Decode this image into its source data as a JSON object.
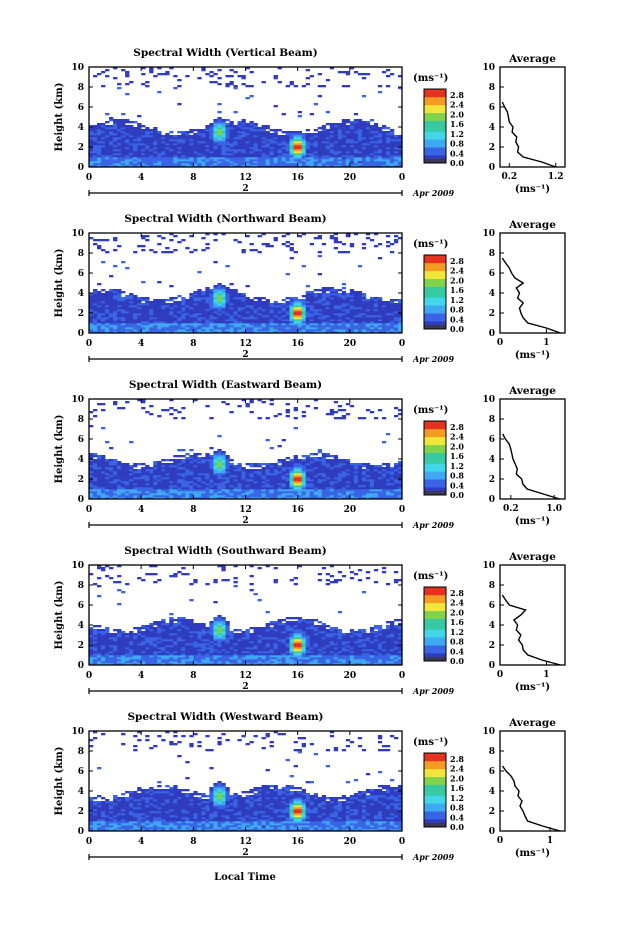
{
  "figure": {
    "colors": {
      "white": "#ffffff",
      "navy": "#2f3cbd",
      "blue": "#3a64e6",
      "sky": "#3fa8f2",
      "cyan": "#41d6e8",
      "teal": "#37c9a2",
      "green": "#7fd24a",
      "yellow": "#f1e63a",
      "orange": "#f29c22",
      "red": "#e5321e",
      "colorbar_bottom": "#3a3a55"
    },
    "x_axis_label": "Local Time",
    "date_label": "Apr 2009",
    "date_marker": "2",
    "colorbar_unit": "(ms⁻¹)",
    "average_title": "Average",
    "average_xlabel": "(ms⁻¹)",
    "y_axis_label": "Height (km)"
  },
  "chart_data": [
    {
      "type": "heatmap",
      "title": "Spectral Width (Vertical Beam)",
      "xlabel": "Local Time",
      "ylabel": "Height (km)",
      "xlim": [
        0,
        24
      ],
      "ylim": [
        0,
        10
      ],
      "x_ticks": [
        "0",
        "4",
        "8",
        "12",
        "16",
        "20",
        "0"
      ],
      "y_ticks": [
        "0",
        "2",
        "4",
        "6",
        "8",
        "10"
      ],
      "colorbar": {
        "unit": "(ms⁻¹)",
        "ticks": [
          "0.0",
          "0.4",
          "0.8",
          "1.2",
          "1.6",
          "2.0",
          "2.4",
          "2.8"
        ],
        "range": [
          0,
          2.8
        ]
      },
      "layer_top_km": 4.4,
      "features": [
        {
          "time": 10,
          "height": 3.5,
          "value": 1.8
        },
        {
          "time": 16,
          "height": 2.0,
          "value": 2.8
        }
      ],
      "average": {
        "title": "Average",
        "xlabel": "(ms⁻¹)",
        "x_ticks": [
          "0.2",
          "1.2"
        ],
        "xlim": [
          0,
          1.4
        ],
        "height": [
          0,
          0.5,
          1,
          1.5,
          2,
          2.5,
          3,
          3.5,
          4,
          4.5,
          5,
          5.5,
          6,
          6.5
        ],
        "width": [
          1.2,
          0.9,
          0.5,
          0.38,
          0.4,
          0.34,
          0.36,
          0.26,
          0.28,
          0.2,
          0.18,
          0.16,
          0.1,
          0.05
        ]
      }
    },
    {
      "type": "heatmap",
      "title": "Spectral Width (Northward Beam)",
      "xlabel": "Local Time",
      "ylabel": "Height (km)",
      "xlim": [
        0,
        24
      ],
      "ylim": [
        0,
        10
      ],
      "x_ticks": [
        "0",
        "4",
        "8",
        "12",
        "16",
        "20",
        "0"
      ],
      "y_ticks": [
        "0",
        "2",
        "4",
        "6",
        "8",
        "10"
      ],
      "colorbar": {
        "unit": "(ms⁻¹)",
        "ticks": [
          "0.0",
          "0.4",
          "0.8",
          "1.2",
          "1.6",
          "2.0",
          "2.4",
          "2.8"
        ],
        "range": [
          0,
          2.8
        ]
      },
      "layer_top_km": 4.2,
      "features": [
        {
          "time": 10,
          "height": 3.5,
          "value": 1.8
        },
        {
          "time": 16,
          "height": 2.0,
          "value": 2.8
        }
      ],
      "average": {
        "title": "Average",
        "xlabel": "(ms⁻¹)",
        "x_ticks": [
          "0",
          "1"
        ],
        "xlim": [
          0,
          1.4
        ],
        "height": [
          0,
          0.5,
          1,
          1.5,
          2,
          2.5,
          3,
          3.5,
          4,
          4.5,
          5,
          5.5,
          6,
          6.5,
          7,
          7.5
        ],
        "width": [
          1.3,
          1.0,
          0.6,
          0.5,
          0.45,
          0.42,
          0.5,
          0.38,
          0.42,
          0.35,
          0.5,
          0.32,
          0.25,
          0.2,
          0.12,
          0.05
        ]
      }
    },
    {
      "type": "heatmap",
      "title": "Spectral Width (Eastward Beam)",
      "xlabel": "Local Time",
      "ylabel": "Height (km)",
      "xlim": [
        0,
        24
      ],
      "ylim": [
        0,
        10
      ],
      "x_ticks": [
        "0",
        "4",
        "8",
        "12",
        "16",
        "20",
        "0"
      ],
      "y_ticks": [
        "0",
        "2",
        "4",
        "6",
        "8",
        "10"
      ],
      "colorbar": {
        "unit": "(ms⁻¹)",
        "ticks": [
          "0.0",
          "0.4",
          "0.8",
          "1.2",
          "1.6",
          "2.0",
          "2.4",
          "2.8"
        ],
        "range": [
          0,
          2.8
        ]
      },
      "layer_top_km": 4.3,
      "features": [
        {
          "time": 10,
          "height": 3.5,
          "value": 1.8
        },
        {
          "time": 16,
          "height": 2.0,
          "value": 2.8
        }
      ],
      "average": {
        "title": "Average",
        "xlabel": "(ms⁻¹)",
        "x_ticks": [
          "0.2",
          "1.0"
        ],
        "xlim": [
          0,
          1.2
        ],
        "height": [
          0,
          0.5,
          1,
          1.5,
          2,
          2.5,
          3,
          3.5,
          4,
          4.5,
          5,
          5.5,
          6,
          6.5
        ],
        "width": [
          1.1,
          0.8,
          0.5,
          0.42,
          0.4,
          0.3,
          0.32,
          0.28,
          0.24,
          0.22,
          0.2,
          0.17,
          0.1,
          0.05
        ]
      }
    },
    {
      "type": "heatmap",
      "title": "Spectral Width (Southward Beam)",
      "xlabel": "Local Time",
      "ylabel": "Height (km)",
      "xlim": [
        0,
        24
      ],
      "ylim": [
        0,
        10
      ],
      "x_ticks": [
        "0",
        "4",
        "8",
        "12",
        "16",
        "20",
        "0"
      ],
      "y_ticks": [
        "0",
        "2",
        "4",
        "6",
        "8",
        "10"
      ],
      "colorbar": {
        "unit": "(ms⁻¹)",
        "ticks": [
          "0.0",
          "0.4",
          "0.8",
          "1.2",
          "1.6",
          "2.0",
          "2.4",
          "2.8"
        ],
        "range": [
          0,
          2.8
        ]
      },
      "layer_top_km": 4.4,
      "features": [
        {
          "time": 10,
          "height": 3.5,
          "value": 1.8
        },
        {
          "time": 16,
          "height": 2.0,
          "value": 2.8
        }
      ],
      "average": {
        "title": "Average",
        "xlabel": "(ms⁻¹)",
        "x_ticks": [
          "0",
          "1"
        ],
        "xlim": [
          0,
          1.4
        ],
        "height": [
          0,
          0.5,
          1,
          1.5,
          2,
          2.5,
          3,
          3.5,
          4,
          4.5,
          5,
          5.5,
          6,
          6.5,
          7
        ],
        "width": [
          1.3,
          0.9,
          0.6,
          0.5,
          0.48,
          0.4,
          0.45,
          0.35,
          0.38,
          0.3,
          0.45,
          0.55,
          0.2,
          0.12,
          0.05
        ]
      }
    },
    {
      "type": "heatmap",
      "title": "Spectral Width (Westward Beam)",
      "xlabel": "Local Time",
      "ylabel": "Height (km)",
      "xlim": [
        0,
        24
      ],
      "ylim": [
        0,
        10
      ],
      "x_ticks": [
        "0",
        "4",
        "8",
        "12",
        "16",
        "20",
        "0"
      ],
      "y_ticks": [
        "0",
        "2",
        "4",
        "6",
        "8",
        "10"
      ],
      "colorbar": {
        "unit": "(ms⁻¹)",
        "ticks": [
          "0.0",
          "0.4",
          "0.8",
          "1.2",
          "1.6",
          "2.0",
          "2.4",
          "2.8"
        ],
        "range": [
          0,
          2.8
        ]
      },
      "layer_top_km": 4.3,
      "features": [
        {
          "time": 10,
          "height": 3.5,
          "value": 1.8
        },
        {
          "time": 16,
          "height": 2.0,
          "value": 2.8
        }
      ],
      "average": {
        "title": "Average",
        "xlabel": "(ms⁻¹)",
        "x_ticks": [
          "0",
          "1"
        ],
        "xlim": [
          0,
          1.3
        ],
        "height": [
          0,
          0.5,
          1,
          1.5,
          2,
          2.5,
          3,
          3.5,
          4,
          4.5,
          5,
          5.5,
          6,
          6.5
        ],
        "width": [
          1.2,
          0.85,
          0.55,
          0.5,
          0.46,
          0.4,
          0.44,
          0.36,
          0.38,
          0.3,
          0.28,
          0.22,
          0.12,
          0.05
        ]
      }
    }
  ]
}
